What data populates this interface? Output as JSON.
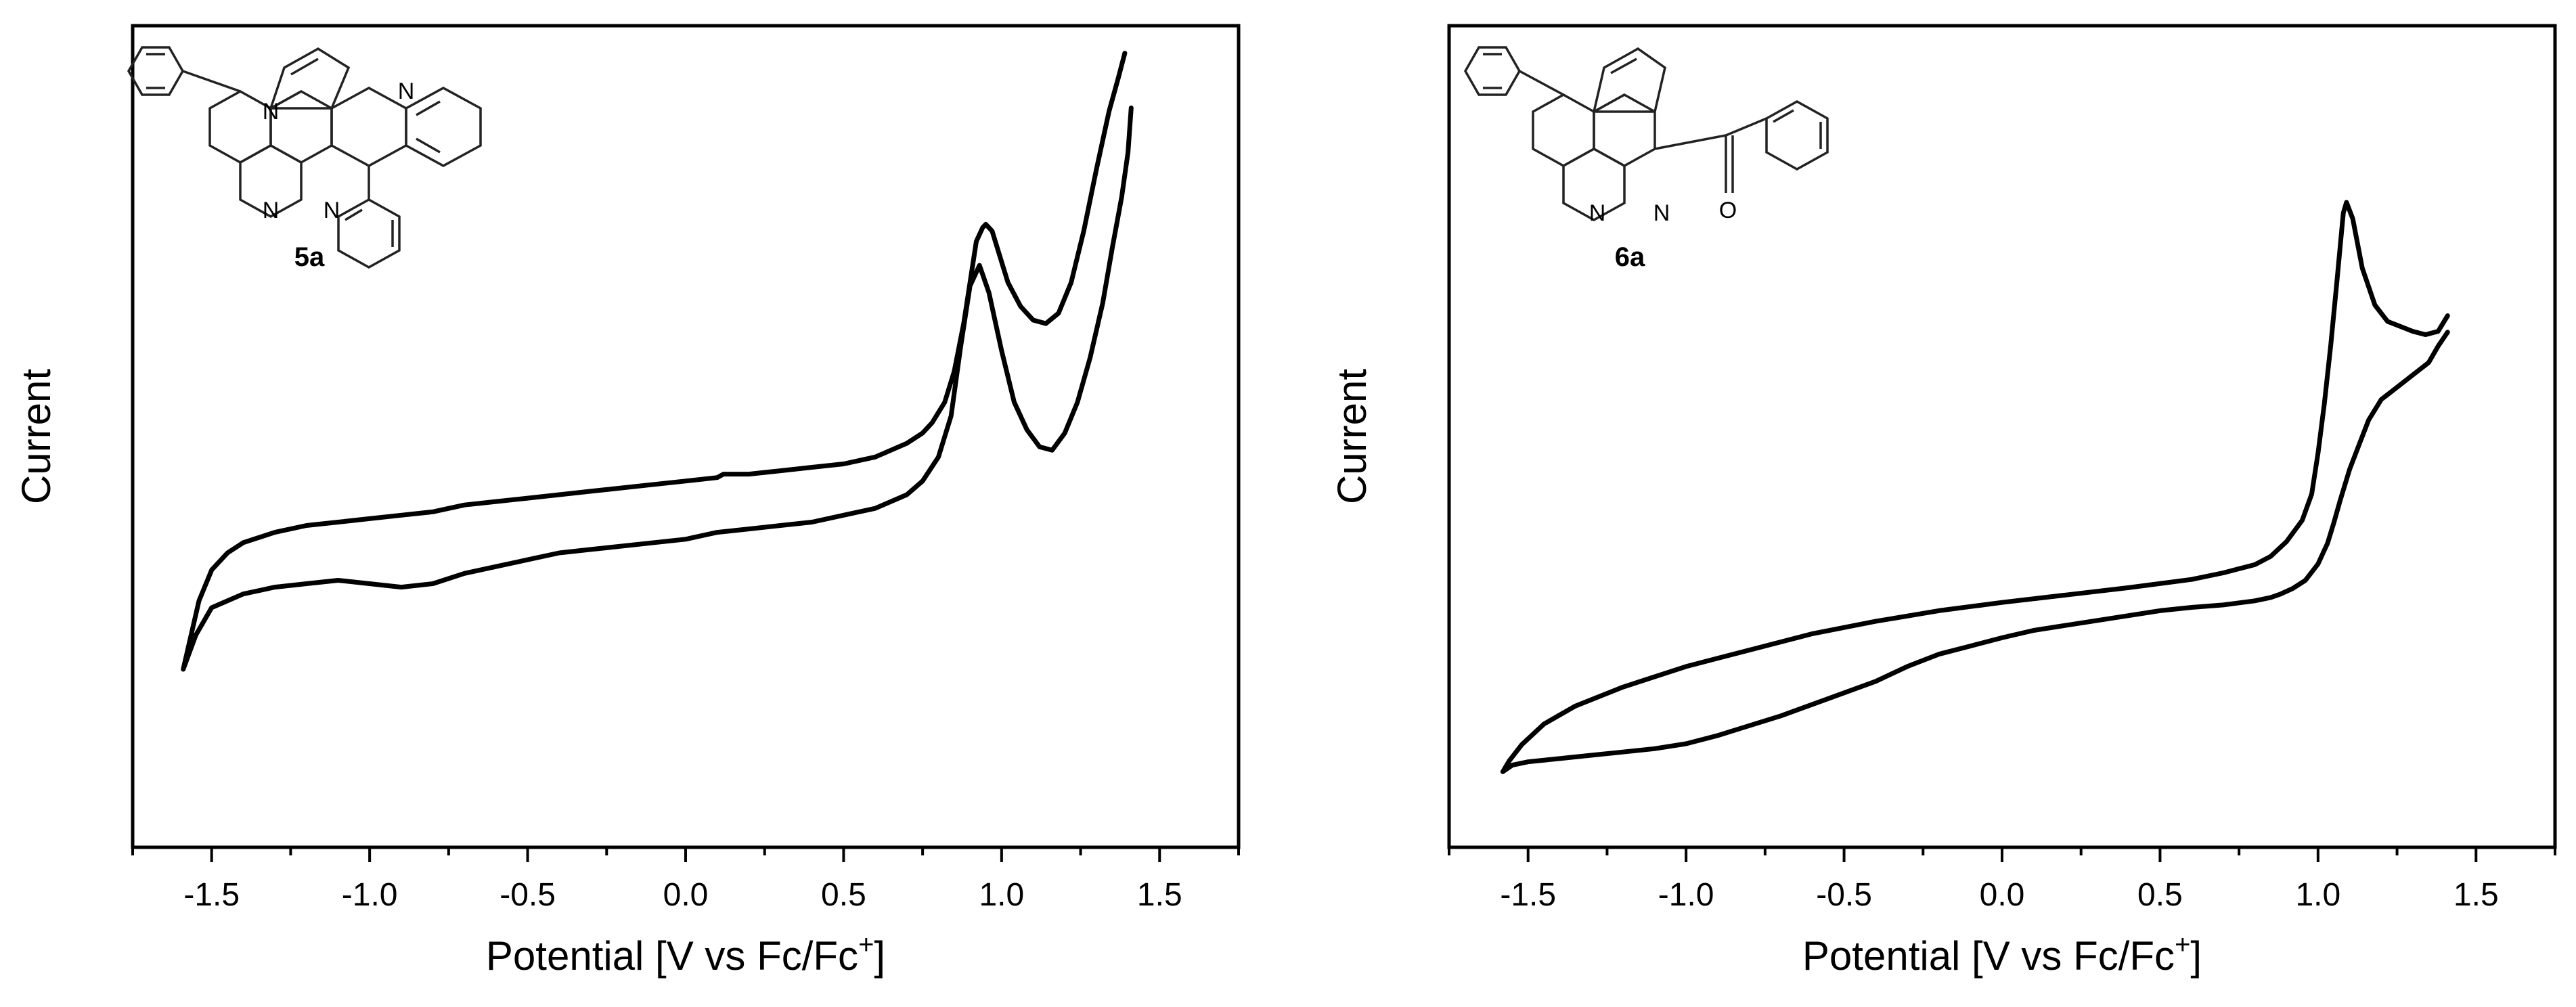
{
  "chart_data": [
    {
      "type": "line",
      "title": "",
      "xlabel": "Potential [V vs Fc/Fc",
      "xlabel_sup": "+",
      "xlabel_end": "]",
      "ylabel": "Current",
      "xlim": [
        -1.75,
        1.75
      ],
      "ylim": [
        -11,
        13
      ],
      "xticks": [
        -1.5,
        -1.0,
        -0.5,
        0.0,
        0.5,
        1.0,
        1.5
      ],
      "xtick_labels": [
        "-1.5",
        "-1.0",
        "-0.5",
        "0.0",
        "0.5",
        "1.0",
        "1.5"
      ],
      "y_tick_labels_shown": false,
      "grid": false,
      "line_color": "#000000",
      "compound_label": "5a",
      "series": [
        {
          "x": [
            1.41,
            1.4,
            1.38,
            1.35,
            1.32,
            1.28,
            1.24,
            1.2,
            1.16,
            1.12,
            1.08,
            1.04,
            1.0,
            0.96,
            0.93,
            0.9,
            0.87,
            0.84,
            0.8,
            0.75,
            0.7,
            0.6,
            0.5,
            0.4,
            0.3,
            0.2,
            0.1,
            0.0,
            -0.1,
            -0.2,
            -0.3,
            -0.4,
            -0.5,
            -0.6,
            -0.7,
            -0.8,
            -0.9,
            -1.0,
            -1.1,
            -1.2,
            -1.3,
            -1.4,
            -1.5,
            -1.55,
            -1.59,
            -1.59,
            -1.57,
            -1.54,
            -1.5,
            -1.45,
            -1.4,
            -1.3,
            -1.2,
            -1.1,
            -1.0,
            -0.9,
            -0.8,
            -0.7,
            -0.6,
            -0.5,
            -0.4,
            -0.3,
            -0.2,
            -0.1,
            0.0,
            0.1,
            0.12,
            0.14,
            0.2,
            0.3,
            0.4,
            0.5,
            0.55,
            0.6,
            0.65,
            0.7,
            0.75,
            0.78,
            0.82,
            0.85,
            0.88,
            0.9,
            0.92,
            0.94,
            0.95,
            0.97,
            0.99,
            1.02,
            1.06,
            1.1,
            1.14,
            1.18,
            1.22,
            1.26,
            1.3,
            1.34,
            1.37,
            1.39
          ],
          "y": [
            10.6,
            9.3,
            8.0,
            6.5,
            4.9,
            3.3,
            2.0,
            1.1,
            0.6,
            0.7,
            1.2,
            2.0,
            3.5,
            5.2,
            6.0,
            5.4,
            3.6,
            1.6,
            0.4,
            -0.3,
            -0.7,
            -1.1,
            -1.3,
            -1.5,
            -1.6,
            -1.7,
            -1.8,
            -2.0,
            -2.1,
            -2.2,
            -2.3,
            -2.4,
            -2.6,
            -2.8,
            -3.0,
            -3.3,
            -3.4,
            -3.3,
            -3.2,
            -3.3,
            -3.4,
            -3.6,
            -4.0,
            -4.8,
            -5.8,
            -5.8,
            -5.0,
            -3.8,
            -2.9,
            -2.4,
            -2.1,
            -1.8,
            -1.6,
            -1.5,
            -1.4,
            -1.3,
            -1.2,
            -1.0,
            -0.9,
            -0.8,
            -0.7,
            -0.6,
            -0.5,
            -0.4,
            -0.3,
            -0.2,
            -0.1,
            -0.1,
            -0.1,
            0.0,
            0.1,
            0.2,
            0.3,
            0.4,
            0.6,
            0.8,
            1.1,
            1.4,
            2.0,
            2.9,
            4.3,
            5.5,
            6.7,
            7.1,
            7.2,
            7.0,
            6.4,
            5.5,
            4.8,
            4.4,
            4.3,
            4.6,
            5.5,
            7.0,
            8.8,
            10.5,
            11.5,
            12.2
          ]
        }
      ]
    },
    {
      "type": "line",
      "title": "",
      "xlabel": "Potential [V vs Fc/Fc",
      "xlabel_sup": "+",
      "xlabel_end": "]",
      "ylabel": "Current",
      "xlim": [
        -1.75,
        1.75
      ],
      "ylim": [
        -5,
        5
      ],
      "xticks": [
        -1.5,
        -1.0,
        -0.5,
        0.0,
        0.5,
        1.0,
        1.5
      ],
      "xtick_labels": [
        "-1.5",
        "-1.0",
        "-0.5",
        "0.0",
        "0.5",
        "1.0",
        "1.5"
      ],
      "y_tick_labels_shown": false,
      "grid": false,
      "line_color": "#000000",
      "compound_label": "6a",
      "series": [
        {
          "x": [
            1.41,
            1.38,
            1.35,
            1.3,
            1.25,
            1.2,
            1.16,
            1.13,
            1.1,
            1.07,
            1.05,
            1.03,
            1.0,
            0.96,
            0.92,
            0.88,
            0.85,
            0.8,
            0.7,
            0.6,
            0.5,
            0.4,
            0.3,
            0.2,
            0.1,
            0.0,
            -0.1,
            -0.2,
            -0.3,
            -0.4,
            -0.5,
            -0.6,
            -0.7,
            -0.8,
            -0.9,
            -1.0,
            -1.1,
            -1.2,
            -1.3,
            -1.4,
            -1.5,
            -1.55,
            -1.58,
            -1.58,
            -1.56,
            -1.52,
            -1.45,
            -1.35,
            -1.2,
            -1.0,
            -0.8,
            -0.6,
            -0.4,
            -0.2,
            0.0,
            0.2,
            0.4,
            0.6,
            0.7,
            0.8,
            0.85,
            0.9,
            0.95,
            0.98,
            1.0,
            1.02,
            1.04,
            1.06,
            1.08,
            1.09,
            1.11,
            1.14,
            1.18,
            1.22,
            1.26,
            1.3,
            1.34,
            1.38,
            1.41
          ],
          "y": [
            1.27,
            1.1,
            0.9,
            0.75,
            0.6,
            0.45,
            0.2,
            -0.1,
            -0.4,
            -0.78,
            -1.05,
            -1.3,
            -1.55,
            -1.75,
            -1.85,
            -1.92,
            -1.96,
            -2.0,
            -2.05,
            -2.08,
            -2.12,
            -2.18,
            -2.24,
            -2.3,
            -2.36,
            -2.45,
            -2.55,
            -2.65,
            -2.8,
            -2.98,
            -3.12,
            -3.26,
            -3.4,
            -3.52,
            -3.64,
            -3.74,
            -3.8,
            -3.84,
            -3.88,
            -3.92,
            -3.96,
            -4.0,
            -4.08,
            -4.08,
            -3.95,
            -3.75,
            -3.5,
            -3.28,
            -3.05,
            -2.8,
            -2.6,
            -2.4,
            -2.25,
            -2.12,
            -2.02,
            -1.93,
            -1.84,
            -1.74,
            -1.66,
            -1.56,
            -1.46,
            -1.28,
            -1.02,
            -0.7,
            -0.2,
            0.4,
            1.1,
            1.9,
            2.72,
            2.85,
            2.65,
            2.05,
            1.6,
            1.4,
            1.34,
            1.28,
            1.24,
            1.28,
            1.47
          ]
        }
      ]
    }
  ]
}
